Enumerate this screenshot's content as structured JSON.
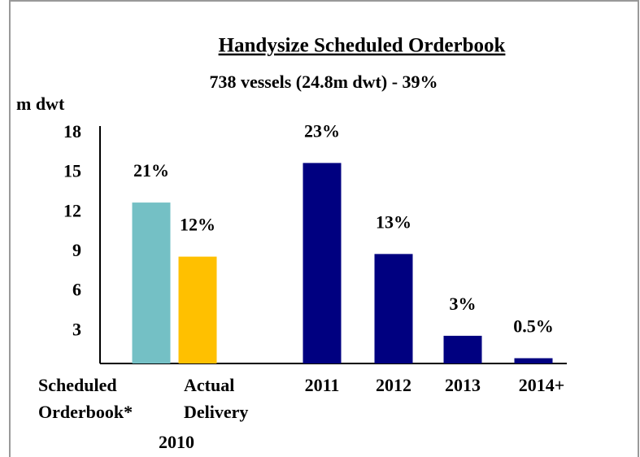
{
  "chart_data": {
    "type": "bar",
    "title": "Handysize Scheduled Orderbook",
    "subtitle": "738 vessels (24.8m dwt) - 39%",
    "y_label": "m dwt",
    "categories": [
      [
        "Scheduled",
        "Orderbook*"
      ],
      [
        "Actual",
        "Delivery"
      ],
      [
        "2011"
      ],
      [
        "2012"
      ],
      [
        "2013"
      ],
      [
        "2014+"
      ]
    ],
    "group_label": "2010",
    "values": [
      12.2,
      8.1,
      15.2,
      8.3,
      2.1,
      0.4
    ],
    "annotations": [
      "21%",
      "12%",
      "23%",
      "13%",
      "3%",
      "0.5%"
    ],
    "colors": [
      "#74c0c5",
      "#ffc000",
      "#000080",
      "#000080",
      "#000080",
      "#000080"
    ],
    "ylim": [
      0,
      18
    ],
    "yticks": [
      3,
      6,
      9,
      12,
      15,
      18
    ],
    "grid": false
  }
}
